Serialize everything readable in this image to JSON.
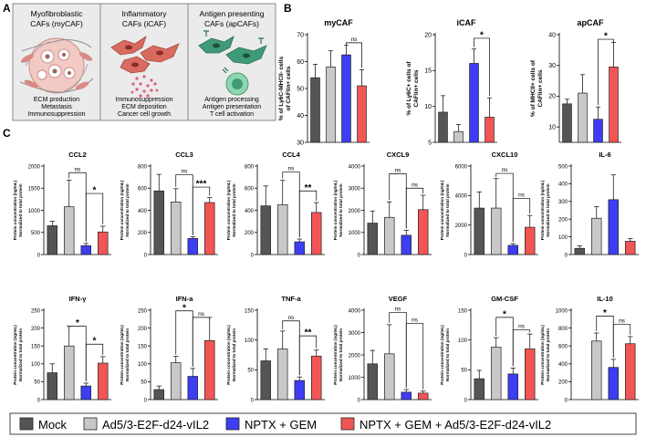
{
  "panel_labels": {
    "a": "A",
    "b": "B",
    "c": "C"
  },
  "panel_a": {
    "boxes": [
      {
        "title_lines": [
          "Myofibroblastic",
          "CAFs (myCAF)"
        ],
        "footer_lines": [
          "ECM production",
          "Metastasis",
          "Immunosuppression"
        ],
        "illustration": "myofibroblast-cells-illustration"
      },
      {
        "title_lines": [
          "Inflammatory",
          "CAFs (iCAF)"
        ],
        "footer_lines": [
          "Immunosuppression",
          "ECM deposition",
          "Cancer cell growth"
        ],
        "illustration": "inflammatory-cells-illustration"
      },
      {
        "title_lines": [
          "Antigen presenting",
          "CAFs (apCAFs)"
        ],
        "footer_lines": [
          "Antigen processing",
          "Antigen presentation",
          "T cell activation"
        ],
        "illustration": "antigen-presenting-cells-illustration"
      }
    ],
    "colors": {
      "box_bg": "#ebebeb",
      "box_border": "#8a8a8a"
    }
  },
  "group_colors": [
    "#555555",
    "#c8c8c8",
    "#3d3df2",
    "#f25555"
  ],
  "legend": [
    "Mock",
    "Ad5/3-E2F-d24-vIL2",
    "NPTX + GEM",
    "NPTX + GEM + Ad5/3-E2F-d24-vIL2"
  ],
  "chart_data": [
    {
      "id": "mycaf",
      "type": "bar",
      "title": "myCAF",
      "ylabel_lines": [
        "% of Ly6C-MHCII- cells",
        "of CAFlin+ cells"
      ],
      "ylim": [
        30,
        70
      ],
      "ticks": [
        30,
        40,
        50,
        60,
        70
      ],
      "tick_labels": [
        "30",
        "40",
        "50",
        "60",
        "70"
      ],
      "values": [
        54,
        58,
        62.5,
        51
      ],
      "err_hi": [
        5,
        6,
        3.5,
        6
      ],
      "err_lo": [
        0,
        0,
        0,
        0
      ],
      "sig": [
        {
          "from": 2,
          "to": 3,
          "label": "ns",
          "y": 67
        }
      ]
    },
    {
      "id": "icaf",
      "type": "bar",
      "title": "iCAF",
      "ylabel_lines": [
        "% of Ly6C+ cells of",
        "CAFlin+ cells"
      ],
      "ylim": [
        5,
        20
      ],
      "ticks": [
        5,
        10,
        15,
        20
      ],
      "tick_labels": [
        "5",
        "10",
        "15",
        "20"
      ],
      "values": [
        9.2,
        6.5,
        16,
        8.5
      ],
      "err_hi": [
        2.3,
        1,
        2,
        2.7
      ],
      "err_lo": [
        0,
        0,
        0,
        0
      ],
      "sig": [
        {
          "from": 2,
          "to": 3,
          "label": "*",
          "y": 19.5
        }
      ]
    },
    {
      "id": "apcaf",
      "type": "bar",
      "title": "apCAF",
      "ylabel_lines": [
        "% of MHCII+ cells of",
        "CAFlin+ cells"
      ],
      "ylim": [
        5,
        40
      ],
      "ticks": [
        10,
        20,
        30,
        40
      ],
      "tick_labels": [
        "10",
        "20",
        "30",
        "40"
      ],
      "values": [
        17.5,
        21,
        12.5,
        29.5
      ],
      "err_hi": [
        1.5,
        6,
        4,
        8
      ],
      "err_lo": [
        0,
        0,
        0,
        0
      ],
      "sig": [
        {
          "from": 2,
          "to": 3,
          "label": "*",
          "y": 38.5
        }
      ]
    },
    {
      "id": "ccl2",
      "type": "bar",
      "title": "CCL2",
      "ylabel_lines": [
        "Protein concentration (ng/mL)",
        "Normalized to total protein"
      ],
      "ylim": [
        0,
        2000
      ],
      "ticks": [
        0,
        500,
        1000,
        1500,
        2000
      ],
      "tick_labels": [
        "0",
        "500",
        "1000",
        "1500",
        "2000"
      ],
      "values": [
        650,
        1080,
        200,
        510
      ],
      "err_hi": [
        100,
        600,
        50,
        130
      ],
      "err_lo": [
        0,
        0,
        0,
        0
      ],
      "sig": [
        {
          "from": 1,
          "to": 2,
          "label": "ns",
          "y": 1850
        },
        {
          "from": 2,
          "to": 3,
          "label": "*",
          "y": 1380
        }
      ]
    },
    {
      "id": "ccl3",
      "type": "bar",
      "title": "CCL3",
      "ylabel_lines": [
        "Protein concentration (ng/mL)",
        "Normalized to total protein"
      ],
      "ylim": [
        0,
        800
      ],
      "ticks": [
        0,
        200,
        400,
        600,
        800
      ],
      "tick_labels": [
        "0",
        "200",
        "400",
        "600",
        "800"
      ],
      "values": [
        575,
        475,
        145,
        470
      ],
      "err_hi": [
        150,
        120,
        15,
        45
      ],
      "err_lo": [
        0,
        0,
        0,
        0
      ],
      "sig": [
        {
          "from": 1,
          "to": 2,
          "label": "ns",
          "y": 720
        },
        {
          "from": 2,
          "to": 3,
          "label": "***",
          "y": 610
        }
      ]
    },
    {
      "id": "ccl4",
      "type": "bar",
      "title": "CCL4",
      "ylabel_lines": [
        "Protein concentration (ng/mL)",
        "Normalized to total protein"
      ],
      "ylim": [
        0,
        800
      ],
      "ticks": [
        0,
        200,
        400,
        600,
        800
      ],
      "tick_labels": [
        "0",
        "200",
        "400",
        "600",
        "800"
      ],
      "values": [
        440,
        450,
        115,
        380
      ],
      "err_hi": [
        180,
        220,
        25,
        90
      ],
      "err_lo": [
        0,
        0,
        0,
        0
      ],
      "sig": [
        {
          "from": 1,
          "to": 2,
          "label": "ns",
          "y": 745
        },
        {
          "from": 2,
          "to": 3,
          "label": "**",
          "y": 575
        }
      ]
    },
    {
      "id": "cxcl9",
      "type": "bar",
      "title": "CXCL9",
      "ylabel_lines": [
        "Protein concentration (ng/mL)",
        "Normalized to total protein"
      ],
      "ylim": [
        0,
        4000
      ],
      "ticks": [
        0,
        1000,
        2000,
        3000,
        4000
      ],
      "tick_labels": [
        "0",
        "1000",
        "2000",
        "3000",
        "4000"
      ],
      "values": [
        1420,
        1680,
        870,
        2030
      ],
      "err_hi": [
        550,
        700,
        230,
        650
      ],
      "err_lo": [
        0,
        0,
        0,
        0
      ],
      "sig": [
        {
          "from": 1,
          "to": 2,
          "label": "ns",
          "y": 3650
        },
        {
          "from": 2,
          "to": 3,
          "label": "ns",
          "y": 3000
        }
      ]
    },
    {
      "id": "cxcl10",
      "type": "bar",
      "title": "CXCL10",
      "ylabel_lines": [
        "Protein concentration (ng/mL)",
        "Normalized to total protein"
      ],
      "ylim": [
        0,
        6000
      ],
      "ticks": [
        0,
        2000,
        4000,
        6000
      ],
      "tick_labels": [
        "0",
        "2000",
        "4000",
        "6000"
      ],
      "values": [
        3150,
        3150,
        620,
        1850
      ],
      "err_hi": [
        1100,
        2000,
        120,
        800
      ],
      "err_lo": [
        0,
        0,
        0,
        0
      ],
      "sig": [
        {
          "from": 1,
          "to": 2,
          "label": "ns",
          "y": 5500
        },
        {
          "from": 2,
          "to": 3,
          "label": "ns",
          "y": 3800
        }
      ]
    },
    {
      "id": "il6",
      "type": "bar",
      "title": "IL-6",
      "ylabel_lines": [
        "Protein concentration (ng/mL)",
        "Normalized to total protein"
      ],
      "ylim": [
        0,
        500
      ],
      "ticks": [
        0,
        100,
        200,
        300,
        400,
        500
      ],
      "tick_labels": [
        "0",
        "100",
        "200",
        "300",
        "400",
        "500"
      ],
      "values": [
        35,
        205,
        310,
        75
      ],
      "err_hi": [
        15,
        65,
        140,
        15
      ],
      "err_lo": [
        0,
        0,
        0,
        0
      ],
      "sig": []
    },
    {
      "id": "ifng",
      "type": "bar",
      "title": "IFN-γ",
      "ylabel_lines": [
        "Protein concentration (ng/mL)",
        "Normalized to total protein"
      ],
      "ylim": [
        0,
        250
      ],
      "ticks": [
        0,
        50,
        100,
        150,
        200,
        250
      ],
      "tick_labels": [
        "0",
        "50",
        "100",
        "150",
        "200",
        "250"
      ],
      "values": [
        75,
        150,
        38,
        102
      ],
      "err_hi": [
        25,
        55,
        8,
        18
      ],
      "err_lo": [
        0,
        0,
        0,
        0
      ],
      "sig": [
        {
          "from": 1,
          "to": 2,
          "label": "*",
          "y": 205
        },
        {
          "from": 2,
          "to": 3,
          "label": "*",
          "y": 155
        }
      ]
    },
    {
      "id": "ifna",
      "type": "bar",
      "title": "IFN-a",
      "ylabel_lines": [
        "Protein concentration (ng/mL)",
        "Normalized to total protein"
      ],
      "ylim": [
        0,
        250
      ],
      "ticks": [
        0,
        50,
        100,
        150,
        200,
        250
      ],
      "tick_labels": [
        "0",
        "50",
        "100",
        "150",
        "200",
        "250"
      ],
      "values": [
        28,
        103,
        65,
        165
      ],
      "err_hi": [
        10,
        18,
        22,
        65
      ],
      "err_lo": [
        0,
        0,
        0,
        0
      ],
      "sig": [
        {
          "from": 1,
          "to": 2,
          "label": "*",
          "y": 248
        },
        {
          "from": 2,
          "to": 3,
          "label": "ns",
          "y": 230
        }
      ]
    },
    {
      "id": "tnfa",
      "type": "bar",
      "title": "TNF-a",
      "ylabel_lines": [
        "Protein concentration (ng/mL)",
        "Normalized to total protein"
      ],
      "ylim": [
        0,
        150
      ],
      "ticks": [
        0,
        50,
        100,
        150
      ],
      "tick_labels": [
        "0",
        "50",
        "100",
        "150"
      ],
      "values": [
        65,
        85,
        32,
        73
      ],
      "err_hi": [
        20,
        30,
        6,
        10
      ],
      "err_lo": [
        0,
        0,
        0,
        0
      ],
      "sig": [
        {
          "from": 1,
          "to": 2,
          "label": "ns",
          "y": 132
        },
        {
          "from": 2,
          "to": 3,
          "label": "**",
          "y": 107
        }
      ]
    },
    {
      "id": "vegf",
      "type": "bar",
      "title": "VEGF",
      "ylabel_lines": [
        "Protein concentration (ng/mL)",
        "Normalized to total protein"
      ],
      "ylim": [
        0,
        4000
      ],
      "ticks": [
        0,
        1000,
        2000,
        3000,
        4000
      ],
      "tick_labels": [
        "0",
        "1000",
        "2000",
        "3000",
        "4000"
      ],
      "values": [
        1600,
        2050,
        330,
        290
      ],
      "err_hi": [
        600,
        1300,
        120,
        90
      ],
      "err_lo": [
        0,
        0,
        0,
        0
      ],
      "sig": [
        {
          "from": 1,
          "to": 2,
          "label": "ns",
          "y": 3900
        },
        {
          "from": 2,
          "to": 3,
          "label": "ns",
          "y": 3400
        }
      ]
    },
    {
      "id": "gmcsf",
      "type": "bar",
      "title": "GM-CSF",
      "ylabel_lines": [
        "Protein concentration (ng/mL)",
        "Normalized to total protein"
      ],
      "ylim": [
        0,
        150
      ],
      "ticks": [
        0,
        50,
        100,
        150
      ],
      "tick_labels": [
        "0",
        "50",
        "100",
        "150"
      ],
      "values": [
        35,
        88,
        43,
        85
      ],
      "err_hi": [
        14,
        16,
        10,
        25
      ],
      "err_lo": [
        0,
        0,
        0,
        0
      ],
      "sig": [
        {
          "from": 1,
          "to": 2,
          "label": "*",
          "y": 138
        },
        {
          "from": 2,
          "to": 3,
          "label": "ns",
          "y": 117
        }
      ]
    },
    {
      "id": "il10",
      "type": "bar",
      "title": "IL-10",
      "ylabel_lines": [
        "Protein concentration (ng/mL)",
        "Normalized to total protein"
      ],
      "ylim": [
        0,
        1000
      ],
      "ticks": [
        0,
        200,
        400,
        600,
        800,
        1000
      ],
      "tick_labels": [
        "0",
        "200",
        "400",
        "600",
        "800",
        "1000"
      ],
      "values": [
        0,
        655,
        360,
        625
      ],
      "err_hi": [
        0,
        90,
        90,
        80
      ],
      "err_lo": [
        0,
        0,
        0,
        0
      ],
      "sig": [
        {
          "from": 1,
          "to": 2,
          "label": "*",
          "y": 935
        },
        {
          "from": 2,
          "to": 3,
          "label": "ns",
          "y": 840
        }
      ]
    }
  ]
}
